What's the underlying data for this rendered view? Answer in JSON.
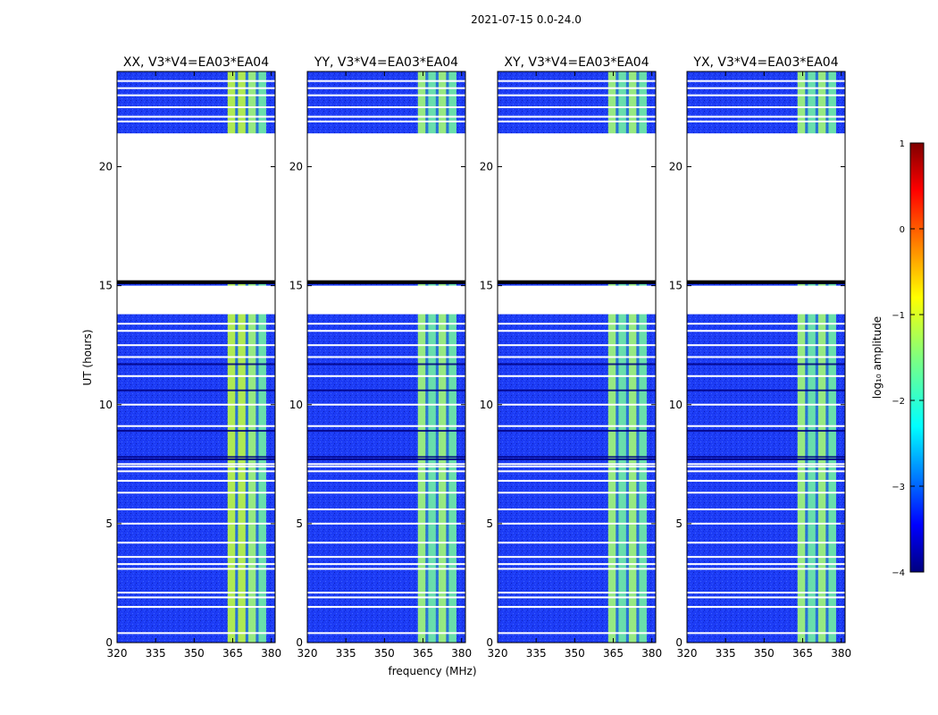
{
  "figure_title": "2021-07-15 0.0-24.0",
  "colors": {
    "background_band": "#1d3cf5",
    "background_dark": "#0a1fb8",
    "frame": "#000000",
    "colormap": [
      "#00007f",
      "#0000ff",
      "#007fff",
      "#00ffff",
      "#7fff7f",
      "#ffff00",
      "#ff7f00",
      "#ff0000",
      "#7f0000"
    ]
  },
  "chart_data": [
    {
      "type": "heatmap",
      "title": "XX, V3*V4=EA03*EA04",
      "xlabel": "",
      "ylabel": "UT (hours)",
      "xlim": [
        320,
        381.5
      ],
      "ylim": [
        0,
        24
      ],
      "xticks": [
        320,
        335,
        350,
        365,
        380
      ],
      "yticks": [
        0,
        5,
        10,
        15,
        20
      ],
      "grid": false
    },
    {
      "type": "heatmap",
      "title": "YY, V3*V4=EA03*EA04",
      "xlabel": "frequency (MHz)",
      "ylabel": "",
      "xlim": [
        320,
        381.5
      ],
      "ylim": [
        0,
        24
      ],
      "xticks": [
        320,
        335,
        350,
        365,
        380
      ],
      "yticks": [
        0,
        5,
        10,
        15,
        20
      ],
      "grid": false
    },
    {
      "type": "heatmap",
      "title": "XY, V3*V4=EA03*EA04",
      "xlabel": "",
      "ylabel": "",
      "xlim": [
        320,
        381.5
      ],
      "ylim": [
        0,
        24
      ],
      "xticks": [
        320,
        335,
        350,
        365,
        380
      ],
      "yticks": [
        0,
        5,
        10,
        15,
        20
      ],
      "grid": false
    },
    {
      "type": "heatmap",
      "title": "YX, V3*V4=EA03*EA04",
      "xlabel": "",
      "ylabel": "",
      "xlim": [
        320,
        381.5
      ],
      "ylim": [
        0,
        24
      ],
      "xticks": [
        320,
        335,
        350,
        365,
        380
      ],
      "yticks": [
        0,
        5,
        10,
        15,
        20
      ],
      "grid": false
    }
  ],
  "data_gaps_hours": [
    [
      13.8,
      15.0
    ],
    [
      15.2,
      21.4
    ]
  ],
  "flag_line_hours": [
    0.4,
    1.5,
    1.9,
    2.1,
    3.1,
    3.3,
    3.6,
    4.2,
    5.0,
    5.6,
    6.3,
    6.8,
    7.2,
    7.4,
    7.5,
    9.1,
    10.0,
    11.2,
    12.0,
    12.5,
    13.1,
    13.4,
    21.9,
    22.1,
    22.5,
    23.0,
    23.3,
    23.6
  ],
  "dark_line_hours": [
    7.7,
    7.8,
    15.1,
    8.9,
    10.6,
    11.7
  ],
  "rfi_band_mhz": [
    364,
    377
  ],
  "rfi_subbands_mhz": [
    [
      363.0,
      366.0
    ],
    [
      367.0,
      370.0
    ],
    [
      371.0,
      374.0
    ],
    [
      375.0,
      378.0
    ]
  ],
  "colorbar": {
    "label": "log₁₀ amplitude",
    "vmin": -4,
    "vmax": 1,
    "ticks": [
      1,
      0,
      -1,
      -2,
      -3,
      -4
    ],
    "tick_labels": [
      "1",
      "0",
      "−1",
      "−2",
      "−3",
      "−4"
    ]
  }
}
